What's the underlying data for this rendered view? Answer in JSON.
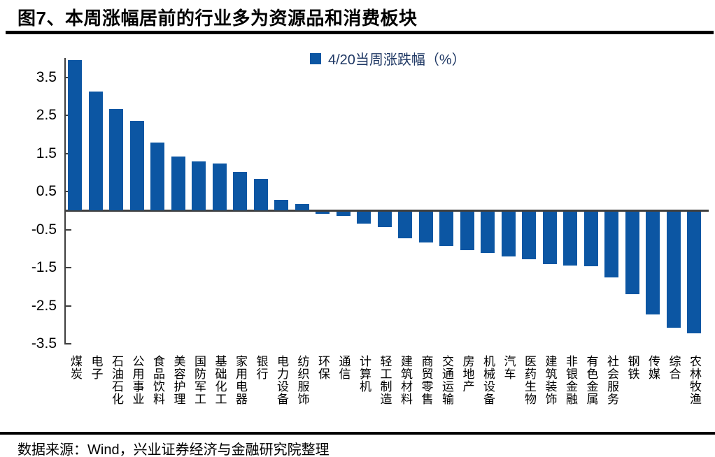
{
  "page": {
    "title": "图7、本周涨幅居前的行业多为资源品和消费板块",
    "source": "数据来源：Wind，兴业证券经济与金融研究院整理"
  },
  "colors": {
    "bar": "#0C56A3",
    "axis": "#3F3F3F",
    "legend_text": "#1F3864",
    "rule": "#000000",
    "background": "#FFFFFF"
  },
  "chart_data": {
    "type": "bar",
    "title": "",
    "legend": "4/20当周涨跌幅（%）",
    "legend_position": "top-center",
    "grid": false,
    "ylim": [
      -3.5,
      4.0
    ],
    "yticks": [
      3.5,
      2.5,
      1.5,
      0.5,
      -0.5,
      -1.5,
      -2.5,
      -3.5
    ],
    "categories": [
      "煤炭",
      "电子",
      "石油石化",
      "公用事业",
      "食品饮料",
      "美容护理",
      "国防军工",
      "基础化工",
      "家用电器",
      "银行",
      "电力设备",
      "纺织服饰",
      "环保",
      "通信",
      "计算机",
      "轻工制造",
      "建筑材料",
      "商贸零售",
      "交通运输",
      "房地产",
      "机械设备",
      "汽车",
      "医药生物",
      "建筑装饰",
      "非银金融",
      "有色金属",
      "社会服务",
      "钢铁",
      "传媒",
      "综合",
      "农林牧渔"
    ],
    "values": [
      3.95,
      3.12,
      2.67,
      2.35,
      1.79,
      1.42,
      1.3,
      1.24,
      1.02,
      0.84,
      0.28,
      0.17,
      -0.05,
      -0.11,
      -0.31,
      -0.4,
      -0.69,
      -0.81,
      -0.89,
      -1.01,
      -1.09,
      -1.18,
      -1.25,
      -1.38,
      -1.41,
      -1.43,
      -1.72,
      -2.17,
      -2.7,
      -3.04,
      -3.2
    ]
  }
}
